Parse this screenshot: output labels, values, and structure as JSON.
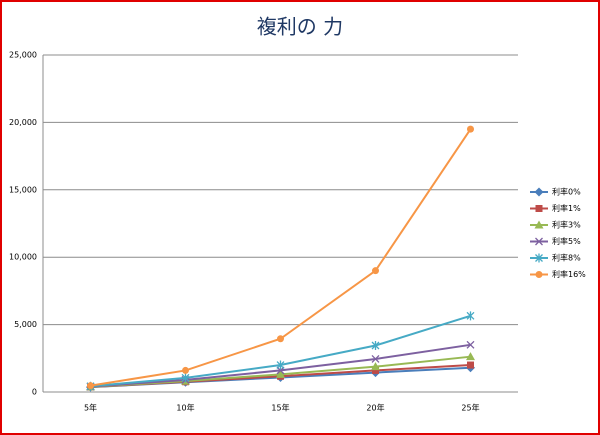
{
  "chart_data": {
    "type": "line",
    "title": "複利の 力",
    "categories": [
      "5年",
      "10年",
      "15年",
      "20年",
      "25年"
    ],
    "series": [
      {
        "name": "利率0%",
        "color": "#4a7ebb",
        "marker": "diamond",
        "values": [
          360,
          720,
          1080,
          1440,
          1800
        ]
      },
      {
        "name": "利率1%",
        "color": "#be4b48",
        "marker": "square",
        "values": [
          370,
          760,
          1170,
          1600,
          2000
        ]
      },
      {
        "name": "利率3%",
        "color": "#98b954",
        "marker": "triangle",
        "values": [
          380,
          810,
          1310,
          1880,
          2620
        ]
      },
      {
        "name": "利率5%",
        "color": "#7d60a0",
        "marker": "x",
        "values": [
          400,
          900,
          1600,
          2450,
          3500
        ]
      },
      {
        "name": "利率8%",
        "color": "#46aac5",
        "marker": "star",
        "values": [
          430,
          1050,
          2000,
          3450,
          5650
        ]
      },
      {
        "name": "利率16%",
        "color": "#f79646",
        "marker": "circle",
        "values": [
          470,
          1600,
          3950,
          9000,
          19500
        ]
      }
    ],
    "ylim": [
      0,
      25000
    ],
    "yticks": [
      0,
      {
        "value": 5000,
        "label": "5,000"
      },
      {
        "value": 10000,
        "label": "10,000"
      },
      {
        "value": 15000,
        "label": "15,000"
      },
      {
        "value": 20000,
        "label": "20,000"
      },
      {
        "value": 25000,
        "label": "25,000"
      }
    ],
    "grid": true,
    "legend": "right"
  }
}
